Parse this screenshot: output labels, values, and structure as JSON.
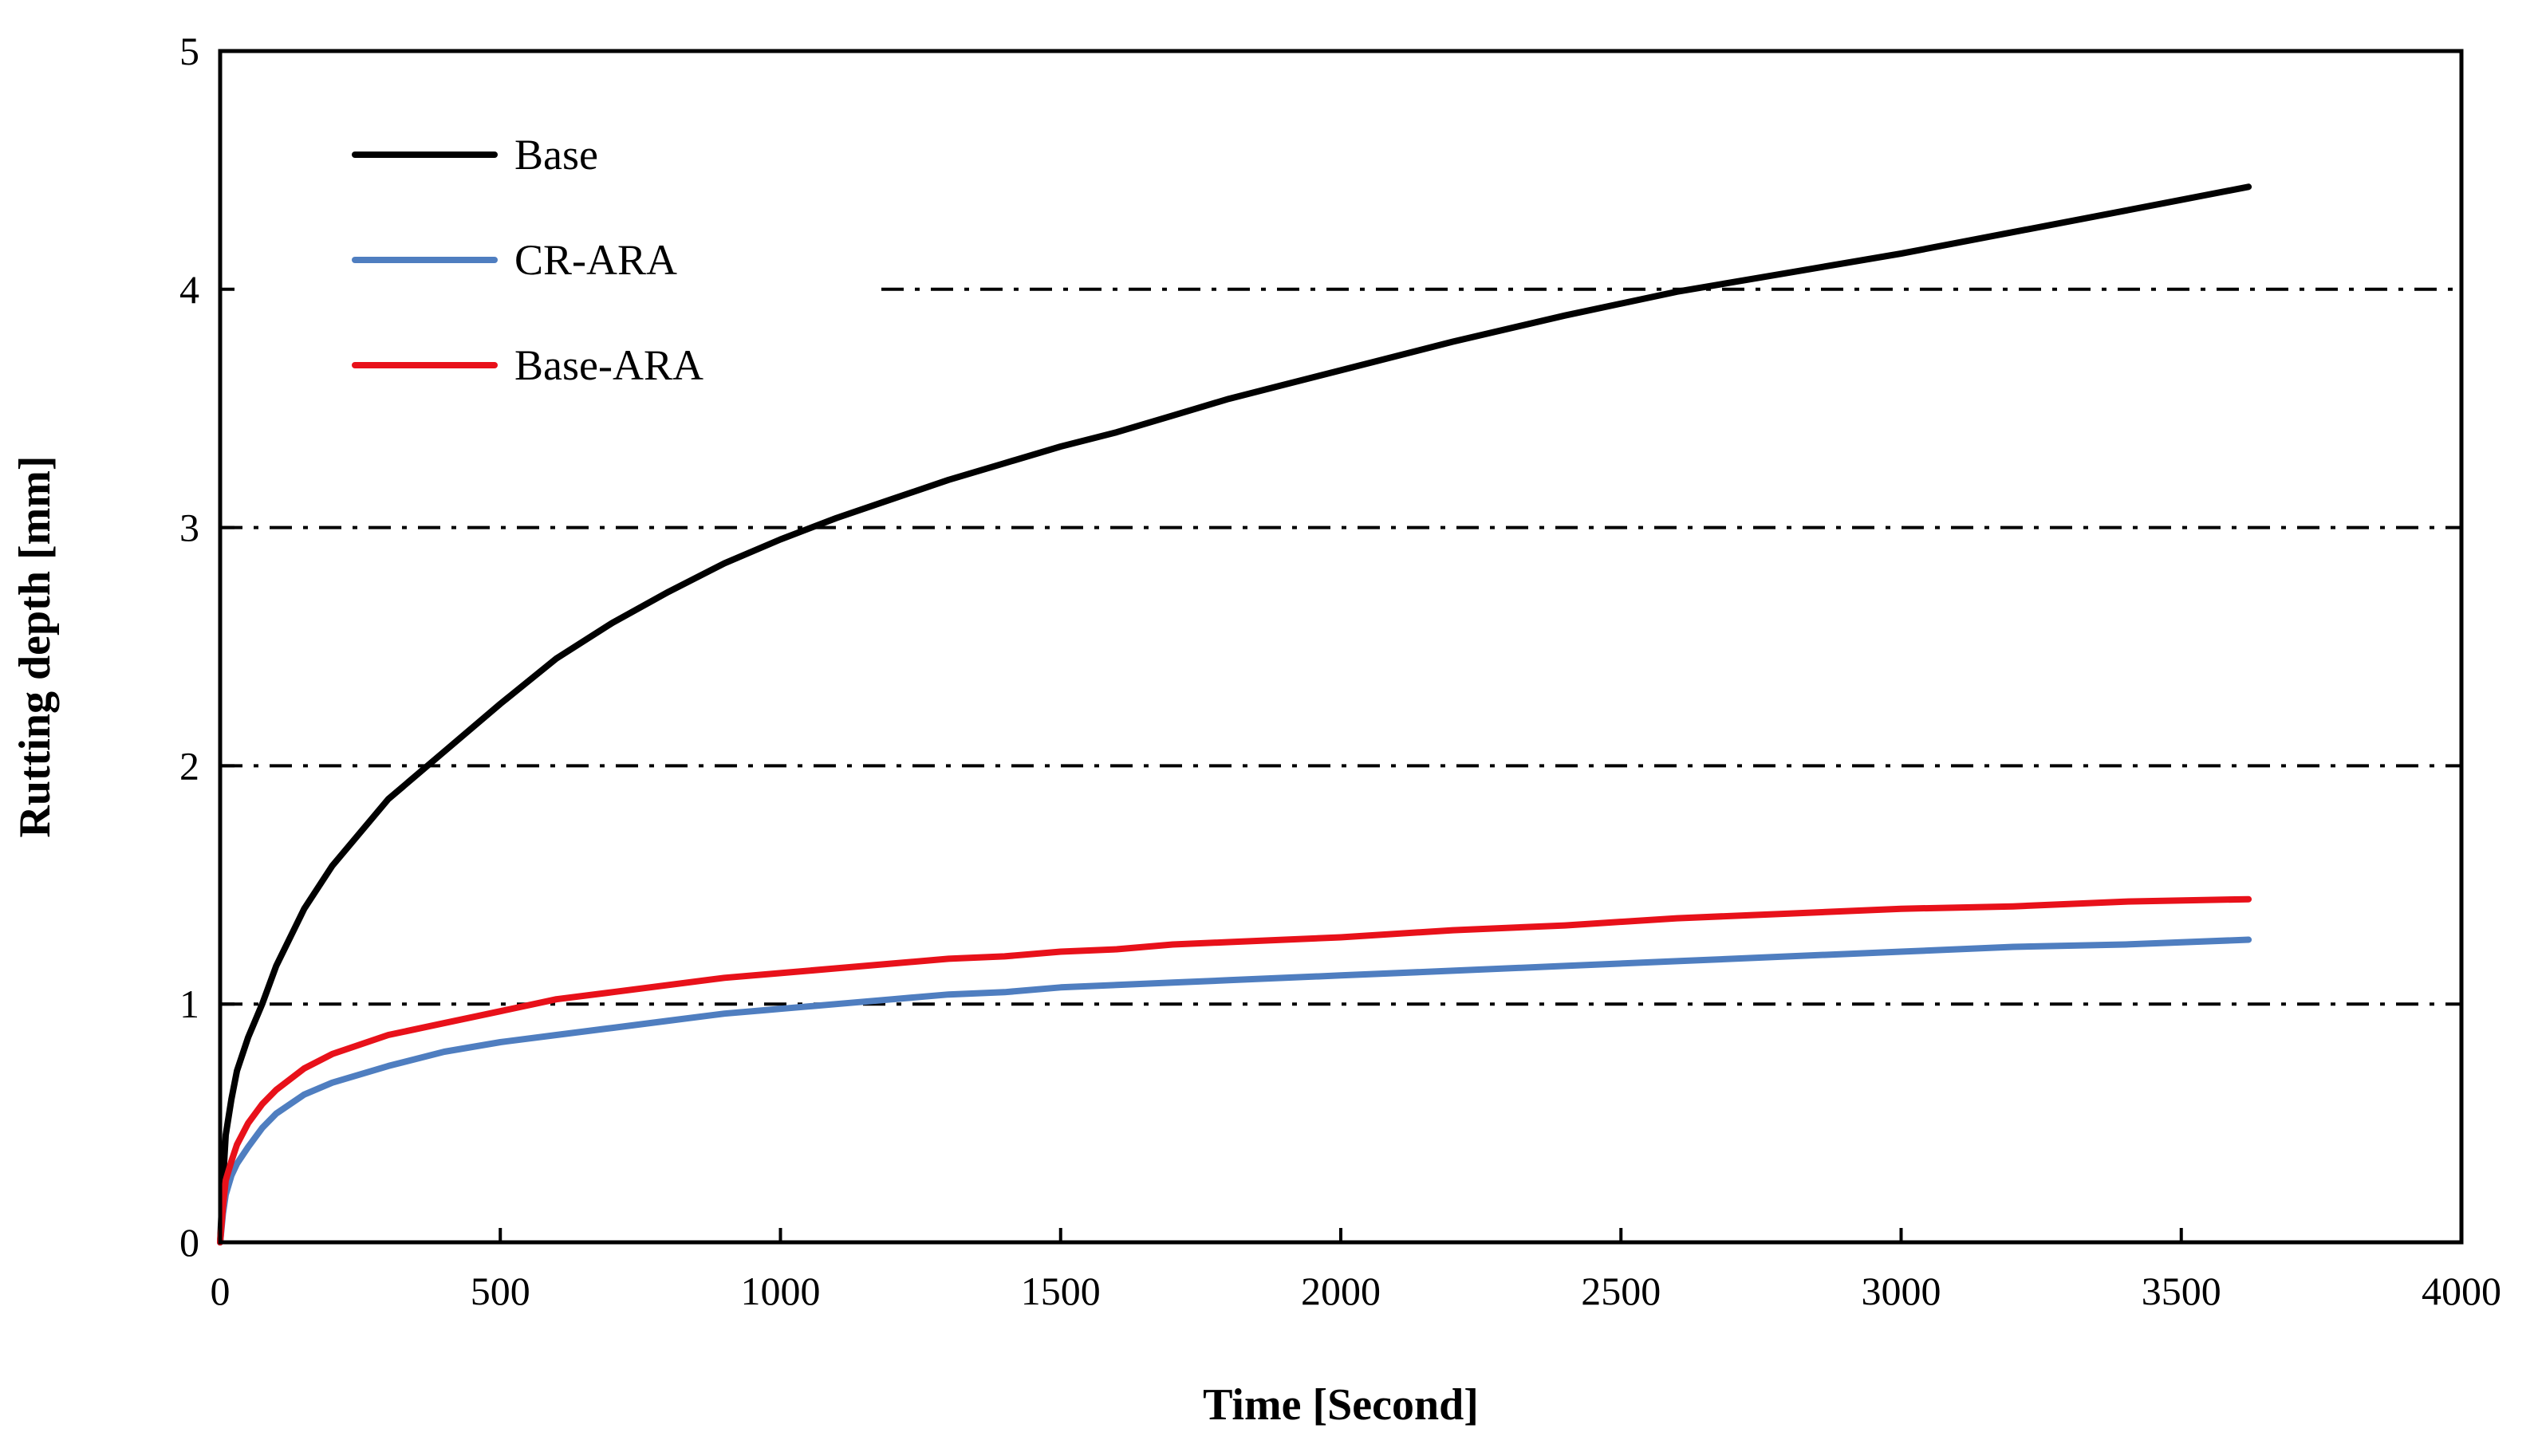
{
  "chart_data": {
    "type": "line",
    "title": "",
    "xlabel": "Time [Second]",
    "ylabel": "Rutting depth [mm]",
    "xlim": [
      0,
      4000
    ],
    "ylim": [
      0,
      5
    ],
    "x_ticks": [
      0,
      500,
      1000,
      1500,
      2000,
      2500,
      3000,
      3500,
      4000
    ],
    "y_ticks": [
      0,
      1,
      2,
      3,
      4,
      5
    ],
    "x_tick_labels": [
      "0",
      "500",
      "1000",
      "1500",
      "2000",
      "2500",
      "3000",
      "3500",
      "4000"
    ],
    "y_tick_labels": [
      "0",
      "1",
      "2",
      "3",
      "4",
      "5"
    ],
    "grid": "horizontal dash-dot",
    "legend_position": "top-left",
    "x": [
      0,
      5,
      10,
      20,
      30,
      50,
      75,
      100,
      150,
      200,
      300,
      400,
      500,
      600,
      700,
      800,
      900,
      1000,
      1100,
      1200,
      1300,
      1400,
      1500,
      1600,
      1700,
      1800,
      1900,
      2000,
      2200,
      2400,
      2600,
      2800,
      3000,
      3200,
      3400,
      3620
    ],
    "series": [
      {
        "name": "Base",
        "color": "#000000",
        "values": [
          0,
          0.25,
          0.45,
          0.6,
          0.72,
          0.86,
          1.0,
          1.16,
          1.4,
          1.58,
          1.86,
          2.06,
          2.26,
          2.45,
          2.6,
          2.73,
          2.85,
          2.95,
          3.04,
          3.12,
          3.2,
          3.27,
          3.34,
          3.4,
          3.47,
          3.54,
          3.6,
          3.66,
          3.78,
          3.89,
          3.99,
          4.07,
          4.15,
          4.24,
          4.33,
          4.43
        ]
      },
      {
        "name": "CR-ARA",
        "color": "#4F7EC0",
        "values": [
          0,
          0.12,
          0.2,
          0.28,
          0.33,
          0.4,
          0.48,
          0.54,
          0.62,
          0.67,
          0.74,
          0.8,
          0.84,
          0.87,
          0.9,
          0.93,
          0.96,
          0.98,
          1.0,
          1.02,
          1.04,
          1.05,
          1.07,
          1.08,
          1.09,
          1.1,
          1.11,
          1.12,
          1.14,
          1.16,
          1.18,
          1.2,
          1.22,
          1.24,
          1.25,
          1.27
        ]
      },
      {
        "name": "Base-ARA",
        "color": "#E8111A",
        "values": [
          0,
          0.15,
          0.26,
          0.34,
          0.41,
          0.5,
          0.58,
          0.64,
          0.73,
          0.79,
          0.87,
          0.92,
          0.97,
          1.02,
          1.05,
          1.08,
          1.11,
          1.13,
          1.15,
          1.17,
          1.19,
          1.2,
          1.22,
          1.23,
          1.25,
          1.26,
          1.27,
          1.28,
          1.31,
          1.33,
          1.36,
          1.38,
          1.4,
          1.41,
          1.43,
          1.44
        ]
      }
    ]
  }
}
